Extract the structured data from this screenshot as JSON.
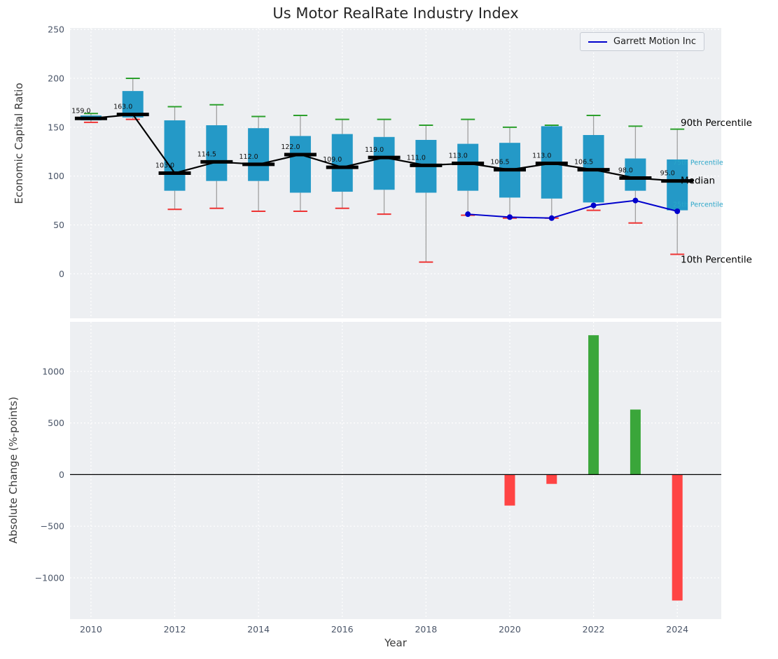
{
  "title": "Us Motor RealRate Industry Index",
  "legend": {
    "label": "Garrett Motion Inc"
  },
  "axes": {
    "x_label": "Year",
    "top_y_label": "Economic Capital Ratio",
    "bottom_y_label": "Absolute Change (%-points)"
  },
  "colors": {
    "panel_bg": "#edeff2",
    "grid": "#ffffff",
    "tick_text": "#4a5568",
    "box_fill": "#2499c7",
    "median_line": "#000000",
    "whisker": "#a0a0a0",
    "cap_top": "#2ca02c",
    "cap_bottom": "#ee3333",
    "garrett_line": "#0000cc",
    "bar_positive": "#3aa63a",
    "bar_negative": "#ff4444"
  },
  "x_axis": {
    "range": [
      2009.5,
      2025.05
    ],
    "ticks": [
      2010,
      2012,
      2014,
      2016,
      2018,
      2020,
      2022,
      2024
    ],
    "tick_labels": [
      "2010",
      "2012",
      "2014",
      "2016",
      "2018",
      "2020",
      "2022",
      "2024"
    ]
  },
  "chart_data": [
    {
      "type": "boxplot+line",
      "panel": "top",
      "title": "Us Motor RealRate Industry Index",
      "ylabel": "Economic Capital Ratio",
      "ylim": [
        -45.5,
        251.5
      ],
      "yticks": [
        0,
        50,
        100,
        150,
        200,
        250
      ],
      "ytick_labels": [
        "0",
        "50",
        "100",
        "150",
        "200",
        "250"
      ],
      "years": [
        2010,
        2011,
        2012,
        2013,
        2014,
        2015,
        2016,
        2017,
        2018,
        2019,
        2020,
        2021,
        2022,
        2023,
        2024
      ],
      "p10": [
        155,
        158,
        66,
        67,
        64,
        64,
        67,
        61,
        12,
        60,
        57,
        57,
        65,
        52,
        20
      ],
      "p25": [
        157,
        160,
        85,
        95,
        95,
        83,
        84,
        86,
        83,
        85,
        78,
        77,
        73,
        85,
        65
      ],
      "median": [
        159,
        163,
        103,
        114.5,
        112,
        122,
        109,
        119,
        111,
        113,
        106.5,
        113,
        106.5,
        98,
        95
      ],
      "p75": [
        162,
        187,
        157,
        152,
        149,
        141,
        143,
        140,
        137,
        133,
        134,
        151,
        142,
        118,
        117
      ],
      "p90": [
        164,
        200,
        171,
        173,
        161,
        162,
        158,
        158,
        152,
        158,
        150,
        152,
        162,
        151,
        148
      ],
      "median_labels": [
        "159.0",
        "163.0",
        "103.0",
        "114.5",
        "112.0",
        "122.0",
        "109.0",
        "119.0",
        "111.0",
        "113.0",
        "106.5",
        "113.0",
        "106.5",
        "98.0",
        "95.0"
      ],
      "series": [
        {
          "name": "Garrett Motion Inc",
          "years": [
            2019,
            2020,
            2021,
            2022,
            2023,
            2024
          ],
          "values": [
            61,
            58,
            57,
            70,
            75,
            64
          ]
        }
      ],
      "annotations": [
        {
          "text": "90th Percentile",
          "value": 155,
          "style": "large",
          "color": "#000000"
        },
        {
          "text": "75th Percentile",
          "value": 114,
          "style": "small",
          "color": "#2aa6c9"
        },
        {
          "text": "Median",
          "value": 96,
          "style": "large",
          "color": "#000000"
        },
        {
          "text": "25th Percentile",
          "value": 71,
          "style": "small",
          "color": "#2aa6c9"
        },
        {
          "text": "10th Percentile",
          "value": 15,
          "style": "large",
          "color": "#000000"
        }
      ]
    },
    {
      "type": "bar",
      "panel": "bottom",
      "ylabel": "Absolute Change (%-points)",
      "ylim": [
        -1400,
        1480
      ],
      "yticks": [
        -1000,
        -500,
        0,
        500,
        1000
      ],
      "ytick_labels": [
        "−1000",
        "−500",
        "0",
        "500",
        "1000"
      ],
      "years": [
        2020,
        2021,
        2022,
        2023,
        2024
      ],
      "values": [
        -300,
        -90,
        1350,
        630,
        -1220
      ]
    }
  ]
}
